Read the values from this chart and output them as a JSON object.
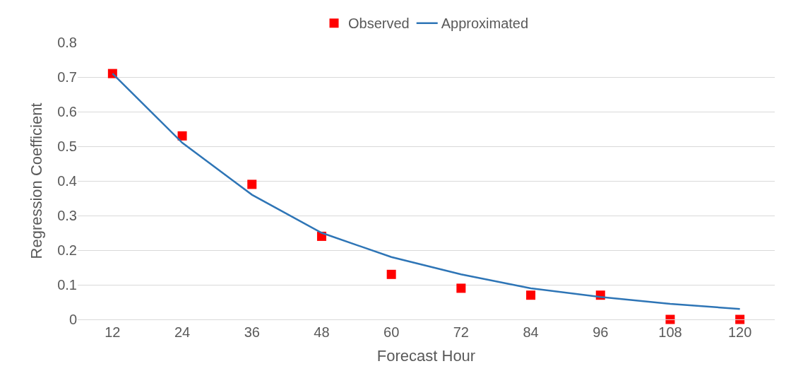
{
  "chart_data": {
    "type": "line",
    "xlabel": "Forecast Hour",
    "ylabel": "Regression Coefficient",
    "categories": [
      "12",
      "24",
      "36",
      "48",
      "60",
      "72",
      "84",
      "96",
      "108",
      "120"
    ],
    "ylim": [
      0,
      0.8
    ],
    "yticks": [
      0,
      0.1,
      0.2,
      0.3,
      0.4,
      0.5,
      0.6,
      0.7,
      0.8
    ],
    "grid": "y",
    "legend": "top",
    "series": [
      {
        "name": "Observed",
        "type": "scatter",
        "marker": "square",
        "color": "#ff0000",
        "values": [
          0.71,
          0.53,
          0.39,
          0.24,
          0.13,
          0.09,
          0.07,
          0.07,
          0,
          0
        ]
      },
      {
        "name": "Approximated",
        "marker": "none",
        "line_style": "solid",
        "color": "#2e75b6",
        "values": [
          0.71,
          0.51,
          0.36,
          0.25,
          0.18,
          0.13,
          0.09,
          0.065,
          0.045,
          0.03
        ]
      }
    ]
  }
}
